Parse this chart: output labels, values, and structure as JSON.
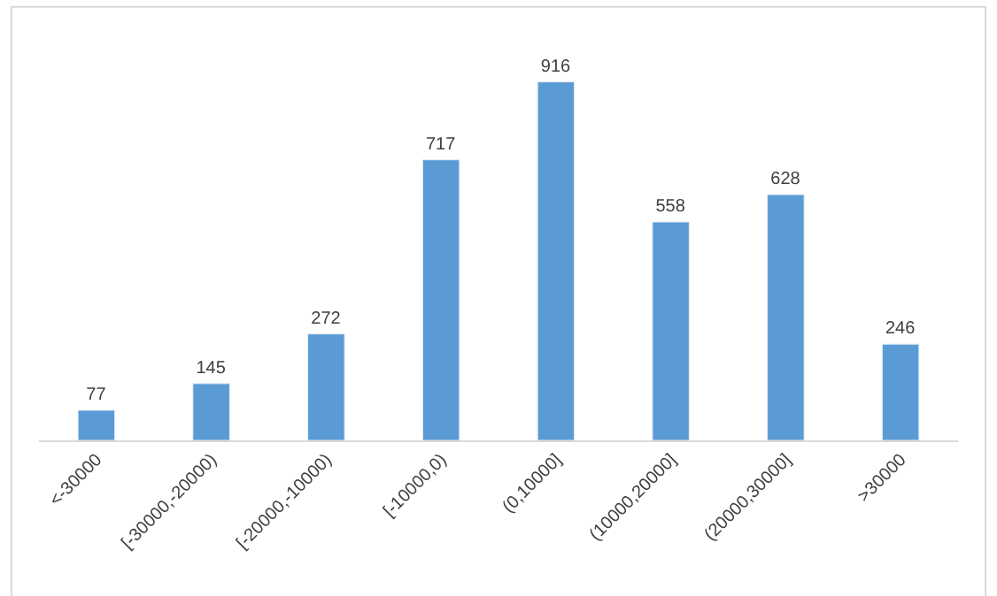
{
  "chart_data": {
    "type": "bar",
    "categories": [
      "<-30000",
      "[-30000,-20000)",
      "[-20000,-10000)",
      "[-10000,0)",
      "(0,10000]",
      "(10000,20000]",
      "(20000,30000]",
      ">30000"
    ],
    "values": [
      77,
      145,
      272,
      717,
      916,
      558,
      628,
      246
    ],
    "color": "#5b9bd5",
    "data_labels": true
  }
}
